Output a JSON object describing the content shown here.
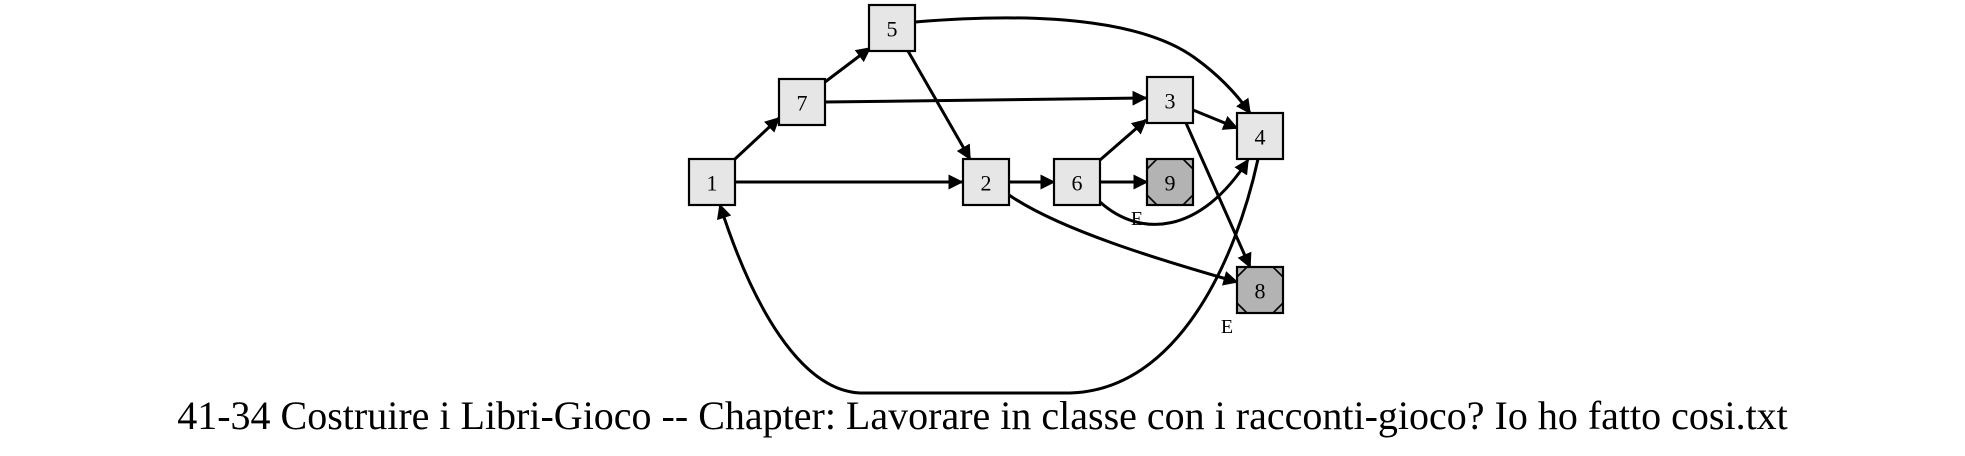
{
  "caption": "41-34 Costruire i Libri-Gioco -- Chapter: Lavorare in classe con i racconti-gioco? Io ho fatto cosi.txt",
  "end_marker": "E",
  "nodes": [
    {
      "id": "1",
      "type": "normal"
    },
    {
      "id": "7",
      "type": "normal"
    },
    {
      "id": "5",
      "type": "normal"
    },
    {
      "id": "2",
      "type": "normal"
    },
    {
      "id": "6",
      "type": "normal"
    },
    {
      "id": "3",
      "type": "normal"
    },
    {
      "id": "4",
      "type": "normal"
    },
    {
      "id": "9",
      "type": "end"
    },
    {
      "id": "8",
      "type": "end"
    }
  ],
  "edges": [
    {
      "from": "1",
      "to": "7"
    },
    {
      "from": "1",
      "to": "2"
    },
    {
      "from": "7",
      "to": "5"
    },
    {
      "from": "7",
      "to": "3"
    },
    {
      "from": "5",
      "to": "2"
    },
    {
      "from": "5",
      "to": "4"
    },
    {
      "from": "2",
      "to": "6"
    },
    {
      "from": "2",
      "to": "8"
    },
    {
      "from": "6",
      "to": "3"
    },
    {
      "from": "6",
      "to": "9"
    },
    {
      "from": "6",
      "to": "4"
    },
    {
      "from": "3",
      "to": "4"
    },
    {
      "from": "3",
      "to": "8"
    },
    {
      "from": "4",
      "to": "1"
    }
  ]
}
